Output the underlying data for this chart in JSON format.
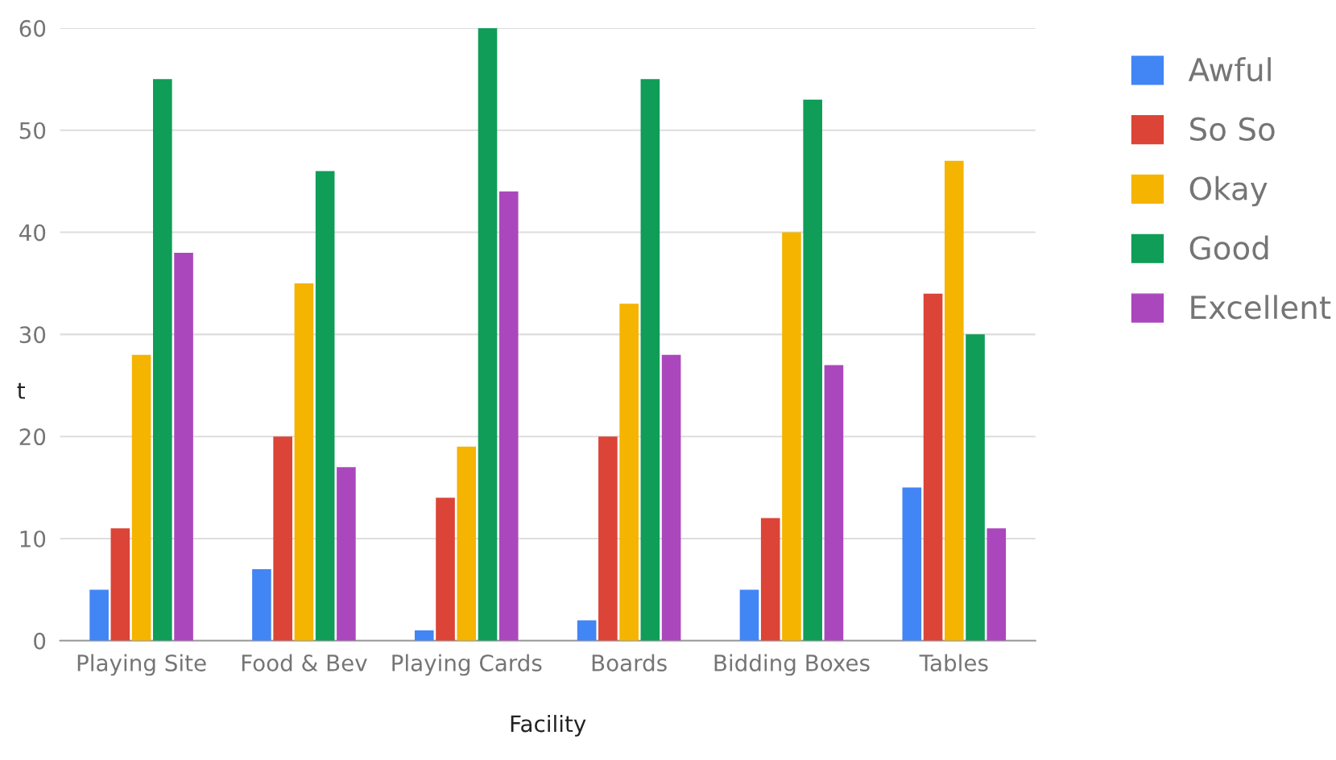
{
  "chart_data": {
    "type": "bar",
    "xlabel": "Facility",
    "ylabel": "t",
    "categories": [
      "Playing Site",
      "Food & Bev",
      "Playing Cards",
      "Boards",
      "Bidding Boxes",
      "Tables"
    ],
    "series": [
      {
        "name": "Awful",
        "color": "#4285f4",
        "values": [
          5,
          7,
          1,
          2,
          5,
          15
        ]
      },
      {
        "name": "So So",
        "color": "#db4437",
        "values": [
          11,
          20,
          14,
          20,
          12,
          34
        ]
      },
      {
        "name": "Okay",
        "color": "#f4b400",
        "values": [
          28,
          35,
          19,
          33,
          40,
          47
        ]
      },
      {
        "name": "Good",
        "color": "#0f9d58",
        "values": [
          55,
          46,
          60,
          55,
          53,
          30
        ]
      },
      {
        "name": "Excellent",
        "color": "#ab47bc",
        "values": [
          38,
          17,
          44,
          28,
          27,
          11
        ]
      }
    ],
    "ylim": [
      0,
      60
    ],
    "yticks": [
      0,
      10,
      20,
      30,
      40,
      50,
      60
    ],
    "grid": "y",
    "legend": "top right"
  }
}
